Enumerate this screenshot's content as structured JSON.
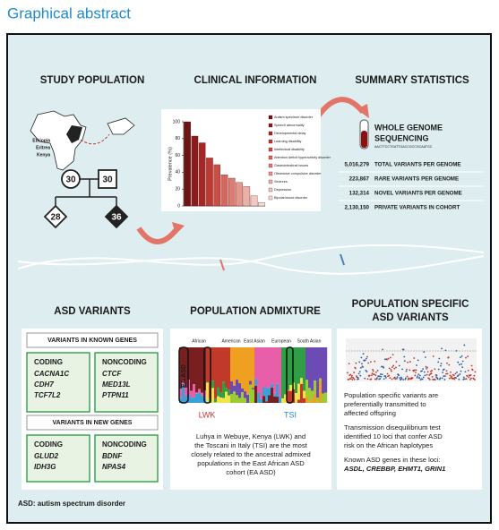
{
  "header": {
    "title": "Graphical abstract"
  },
  "study_population": {
    "title": "STUDY POPULATION",
    "countries": [
      "Ethiopia",
      "Eritrea",
      "Kenya"
    ],
    "pedigree": [
      "30",
      "30",
      "28",
      "36"
    ]
  },
  "clinical_information": {
    "title": "CLINICAL INFORMATION",
    "chart": {
      "type": "bar",
      "y_label": "Prevalence (%)",
      "ylim": [
        0,
        100
      ],
      "yticks": [
        0,
        20,
        40,
        60,
        80,
        100
      ],
      "categories": [
        "Autism spectrum disorder",
        "Speech abnormality",
        "Developmental delay",
        "Learning disability",
        "Intellectual disability",
        "Attention deficit hyperactivity disorder",
        "Gastrointestinal issues",
        "Obsessive compulsive disorder",
        "Seizures",
        "Depression",
        "Bipolar/mood disorder"
      ],
      "values": [
        100,
        83,
        75,
        57,
        49,
        37,
        33,
        28,
        23,
        12,
        4
      ],
      "colors": [
        "#6e1414",
        "#8a1c1c",
        "#a42626",
        "#bb3a34",
        "#c94e46",
        "#d4675d",
        "#dc7d73",
        "#e4968d",
        "#ebb0a8",
        "#f1c8c2",
        "#f6dfdb"
      ]
    }
  },
  "summary_statistics": {
    "title": "SUMMARY STATISTICS",
    "method": [
      "WHOLE GENOME",
      "SEQUENCING"
    ],
    "sequence": "AACTTCCTGATTGACCGCCGCAATGC",
    "rows": [
      {
        "value": "5,016,279",
        "label": "TOTAL VARIANTS PER GENOME"
      },
      {
        "value": "223,867",
        "label": "RARE VARIANTS PER GENOME"
      },
      {
        "value": "132,314",
        "label": "NOVEL VARIANTS PER GENOME"
      },
      {
        "value": "2,130,150",
        "label": "PRIVATE VARIANTS IN COHORT"
      }
    ]
  },
  "asd_variants": {
    "title": "ASD VARIANTS",
    "known": {
      "title": "VARIANTS IN KNOWN GENES",
      "coding": {
        "label": "CODING",
        "genes": [
          "CACNA1C",
          "CDH7",
          "TCF7L2"
        ]
      },
      "noncoding": {
        "label": "NONCODING",
        "genes": [
          "CTCF",
          "MED13L",
          "PTPN11"
        ]
      }
    },
    "new": {
      "title": "VARIANTS IN NEW GENES",
      "coding": {
        "label": "CODING",
        "genes": [
          "GLUD2",
          "IDH3G"
        ]
      },
      "noncoding": {
        "label": "NONCODING",
        "genes": [
          "BDNF",
          "NPAS4"
        ]
      }
    },
    "footnote": "ASD: autism spectrum disorder"
  },
  "population_admixture": {
    "title": "POPULATION ADMIXTURE",
    "groups": [
      "African",
      "American",
      "East Asian",
      "European",
      "South Asian"
    ],
    "cohort": "EA ASD",
    "left_marker": "LWK",
    "right_marker": "TSI",
    "text": [
      "Luhya in Webuye, Kenya (LWK) and",
      "the Toscani in Italy (TSI) are the most",
      "closely related to the ancestral admixed",
      "populations in the East African ASD",
      "cohort (EA ASD)"
    ]
  },
  "population_specific": {
    "title": [
      "POPULATION SPECIFIC",
      "ASD VARIANTS"
    ],
    "text": [
      "Population specific variants are",
      "preferentially transmitted to",
      "affected offspring",
      "Transmission disequilibrium test",
      "identified 10 loci that confer ASD",
      "risk on the African haplotypes",
      "Known ASD genes in these loci:",
      "ASDL, CREBBP, EHMT1, GRIN1"
    ]
  }
}
